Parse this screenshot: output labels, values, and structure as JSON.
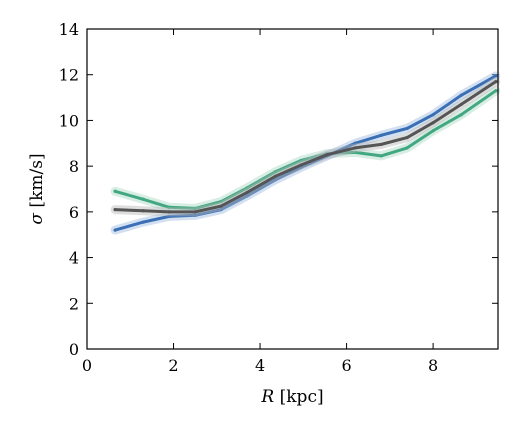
{
  "chart_data": {
    "type": "line",
    "xlabel_symbol": "R",
    "xlabel_unit": " [kpc]",
    "ylabel_symbol": "σ",
    "ylabel_unit": " [km/s]",
    "xlim": [
      0,
      9.5
    ],
    "ylim": [
      0,
      14
    ],
    "xticks": [
      0,
      2,
      4,
      6,
      8
    ],
    "yticks": [
      0,
      2,
      4,
      6,
      8,
      10,
      12,
      14
    ],
    "grid": false,
    "legend": "none",
    "x": [
      0.65,
      1.3,
      1.9,
      2.5,
      3.1,
      3.7,
      4.35,
      4.95,
      5.55,
      6.2,
      6.8,
      7.4,
      8.0,
      8.65,
      9.45
    ],
    "series": [
      {
        "color": "#41a882",
        "band_color": "#a8d8c4",
        "values": [
          6.9,
          6.55,
          6.2,
          6.15,
          6.45,
          7.05,
          7.75,
          8.25,
          8.55,
          8.6,
          8.45,
          8.8,
          9.55,
          10.25,
          11.3
        ]
      },
      {
        "color": "#3a6fb5",
        "band_color": "#9cbbe0",
        "values": [
          5.2,
          5.55,
          5.8,
          5.85,
          6.1,
          6.7,
          7.4,
          7.95,
          8.45,
          9.0,
          9.35,
          9.65,
          10.25,
          11.1,
          11.95
        ]
      },
      {
        "color": "#555555",
        "band_color": "#b5b5b5",
        "values": [
          6.1,
          6.05,
          6.0,
          6.0,
          6.25,
          6.85,
          7.55,
          8.05,
          8.5,
          8.8,
          8.95,
          9.25,
          9.9,
          10.7,
          11.7
        ]
      }
    ]
  }
}
